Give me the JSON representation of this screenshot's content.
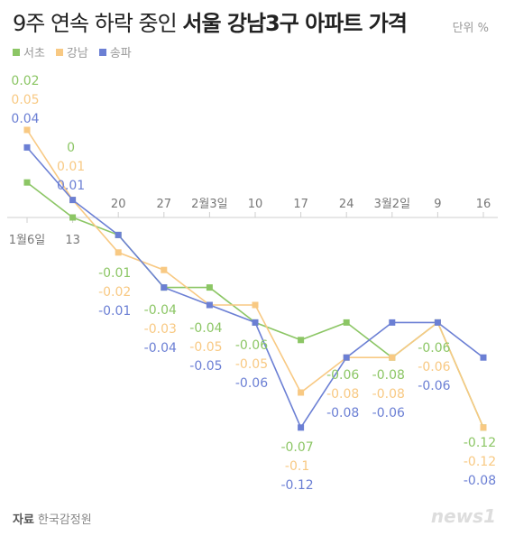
{
  "title": {
    "light": "9주 연속 하락 중인 ",
    "bold": "서울 강남3구 아파트 가격"
  },
  "unit": "단위 %",
  "source": {
    "label": "자료",
    "text": "한국감정원"
  },
  "logo": "news1",
  "chart_data": {
    "type": "line",
    "categories": [
      "1월6일",
      "13",
      "20",
      "27",
      "2월3일",
      "10",
      "17",
      "24",
      "3월2일",
      "9",
      "16"
    ],
    "series": [
      {
        "name": "서초",
        "color": "#8cc665",
        "values": [
          0.02,
          0,
          -0.01,
          -0.04,
          -0.04,
          -0.06,
          -0.07,
          -0.06,
          -0.08,
          -0.06,
          -0.12
        ]
      },
      {
        "name": "강남",
        "color": "#f8c983",
        "values": [
          0.05,
          0.01,
          -0.02,
          -0.03,
          -0.05,
          -0.05,
          -0.1,
          -0.08,
          -0.08,
          -0.06,
          -0.12
        ]
      },
      {
        "name": "송파",
        "color": "#6b7fd4",
        "values": [
          0.04,
          0.01,
          -0.01,
          -0.04,
          -0.05,
          -0.06,
          -0.12,
          -0.08,
          -0.06,
          -0.06,
          -0.08
        ]
      }
    ],
    "value_labels": [
      [
        "0.02",
        "0",
        "-0.01",
        "-0.04",
        "-0.04",
        "-0.06",
        "-0.07",
        "-0.06",
        "-0.08",
        "-0.06",
        "-0.12"
      ],
      [
        "0.05",
        "0.01",
        "-0.02",
        "-0.03",
        "-0.05",
        "-0.05",
        "-0.1",
        "-0.08",
        "-0.08",
        "-0.06",
        "-0.12"
      ],
      [
        "0.04",
        "0.01",
        "-0.01",
        "-0.04",
        "-0.05",
        "-0.06",
        "-0.12",
        "-0.08",
        "-0.06",
        "-0.06",
        "-0.08"
      ]
    ],
    "ylim": [
      -0.12,
      0.05
    ],
    "grid": false,
    "legend_position": "top-left"
  }
}
